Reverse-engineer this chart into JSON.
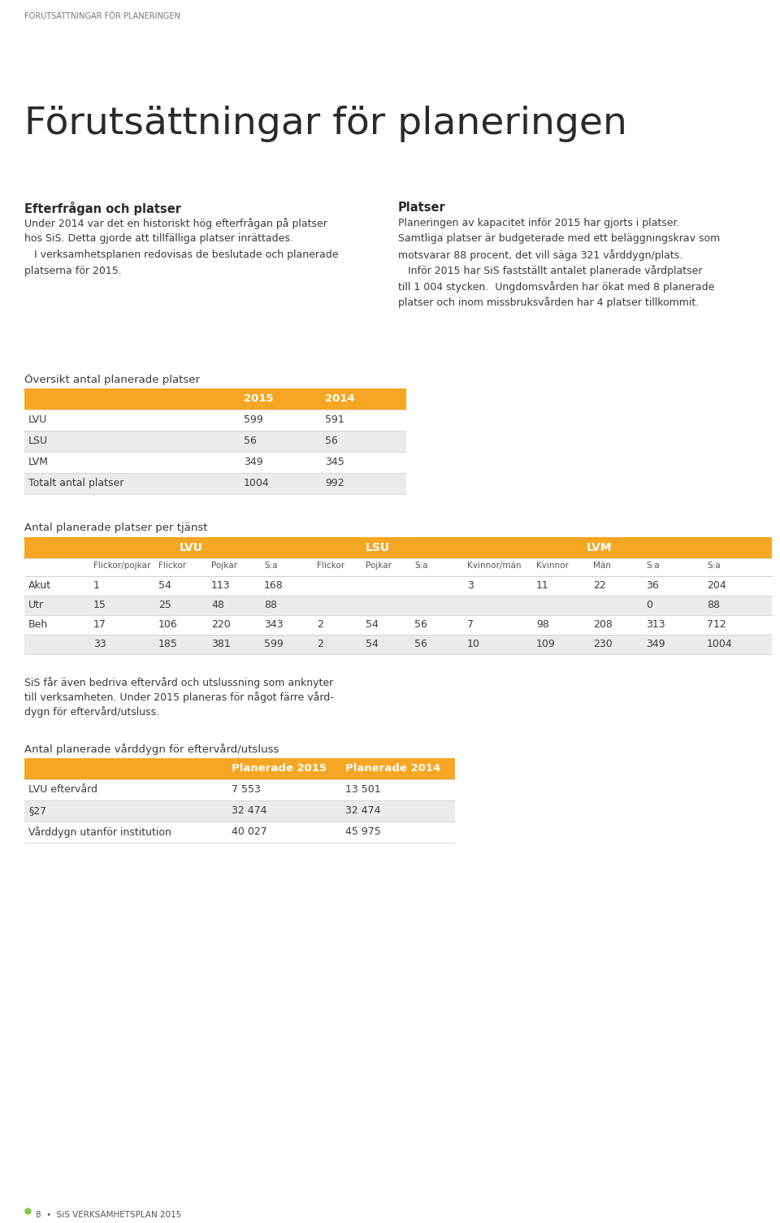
{
  "bg_color": "#ffffff",
  "page_header": "FÖRUTSÄTTNINGAR FÖR PLANERINGEN",
  "main_title": "Förutsättningar för planeringen",
  "left_heading": "Efterfrågan och platser",
  "left_lines": [
    "Under 2014 var det en historiskt hög efterfrågan på platser",
    "hos SiS. Detta gjorde att tillfälliga platser inrättades.",
    "   I verksamhetsplanen redovisas de beslutade och planerade",
    "platserna för 2015."
  ],
  "right_heading": "Platser",
  "right_lines": [
    "Planeringen av kapacitet inför 2015 har gjorts i platser.",
    "Samtliga platser är budgeterade med ett beläggningskrav som",
    "motsvarar 88 procent, det vill säga 321 vårddygn/plats.",
    "   Inför 2015 har SiS fastställt antalet planerade vårdplatser",
    "till 1 004 stycken.  Ungdomsvården har ökat med 8 planerade",
    "platser och inom missbruksvården har 4 platser tillkommit."
  ],
  "table1_heading": "Översikt antal planerade platser",
  "table1_header": [
    "",
    "2015",
    "2014"
  ],
  "table1_rows": [
    [
      "LVU",
      "599",
      "591"
    ],
    [
      "LSU",
      "56",
      "56"
    ],
    [
      "LVM",
      "349",
      "345"
    ],
    [
      "Totalt antal platser",
      "1004",
      "992"
    ]
  ],
  "table1_row_bg": [
    "#ffffff",
    "#ebebeb",
    "#ffffff",
    "#ebebeb"
  ],
  "table2_heading": "Antal planerade platser per tjänst",
  "table2_sub": [
    "Flickor/pojkar",
    "Flickor",
    "Pojkar",
    "S:a",
    "Flickor",
    "Pojkar",
    "S:a",
    "Kvinnor/män",
    "Kvinnor",
    "Män",
    "S:a",
    "S:a"
  ],
  "table2_rows": [
    [
      "Akut",
      "1",
      "54",
      "113",
      "168",
      "",
      "",
      "",
      "3",
      "11",
      "22",
      "36",
      "204"
    ],
    [
      "Utr",
      "15",
      "25",
      "48",
      "88",
      "",
      "",
      "",
      "",
      "",
      "",
      "0",
      "88"
    ],
    [
      "Beh",
      "17",
      "106",
      "220",
      "343",
      "2",
      "54",
      "56",
      "7",
      "98",
      "208",
      "313",
      "712"
    ],
    [
      "",
      "33",
      "185",
      "381",
      "599",
      "2",
      "54",
      "56",
      "10",
      "109",
      "230",
      "349",
      "1004"
    ]
  ],
  "table2_row_bg": [
    "#ffffff",
    "#ebebeb",
    "#ffffff",
    "#ebebeb"
  ],
  "body_text_lines": [
    "SiS får även bedriva eftervård och utslussning som anknyter",
    "till verksamheten. Under 2015 planeras för något färre vård-",
    "dygn för eftervård/utsluss."
  ],
  "table3_heading": "Antal planerade vårddygn för eftervård/utsluss",
  "table3_header": [
    "",
    "Planerade 2015",
    "Planerade 2014"
  ],
  "table3_rows": [
    [
      "LVU eftervård",
      "7 553",
      "13 501"
    ],
    [
      "§27",
      "32 474",
      "32 474"
    ],
    [
      "Vårddygn utanför institution",
      "40 027",
      "45 975"
    ]
  ],
  "table3_row_bg": [
    "#ffffff",
    "#ebebeb",
    "#ffffff"
  ],
  "footer_dot_color": "#8dc63f",
  "footer_text": "SiS VERKSAMHETSPLAN 2015",
  "footer_number": "8",
  "orange_color": "#f5a623",
  "white": "#ffffff",
  "text_dark": "#3a3a3a",
  "text_mid": "#555555",
  "text_light": "#777777"
}
